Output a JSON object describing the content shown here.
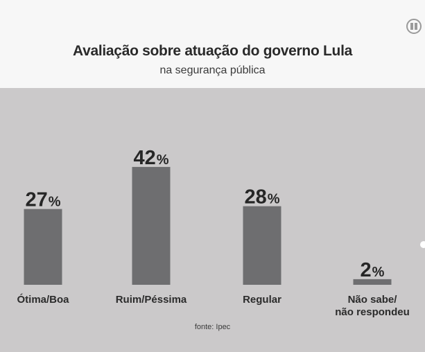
{
  "header": {
    "title": "Avaliação sobre atuação do governo Lula",
    "subtitle": "na segurança pública"
  },
  "source": "fonte: Ipec",
  "logo_icon": "channel-logo-icon",
  "colors": {
    "bar": "#6e6e70",
    "background": "#cbc9ca",
    "header_bg": "#f7f7f7"
  },
  "chart_data": {
    "type": "bar",
    "title": "Avaliação sobre atuação do governo Lula",
    "subtitle": "na segurança pública",
    "categories": [
      "Ótima/Boa",
      "Ruim/Péssima",
      "Regular",
      "Não sabe/\nnão respondeu"
    ],
    "values": [
      27,
      42,
      28,
      2
    ],
    "value_labels": [
      "27",
      "42",
      "28",
      "2"
    ],
    "unit": "%",
    "xlabel": "",
    "ylabel": "",
    "grid": false,
    "legend": "none"
  }
}
